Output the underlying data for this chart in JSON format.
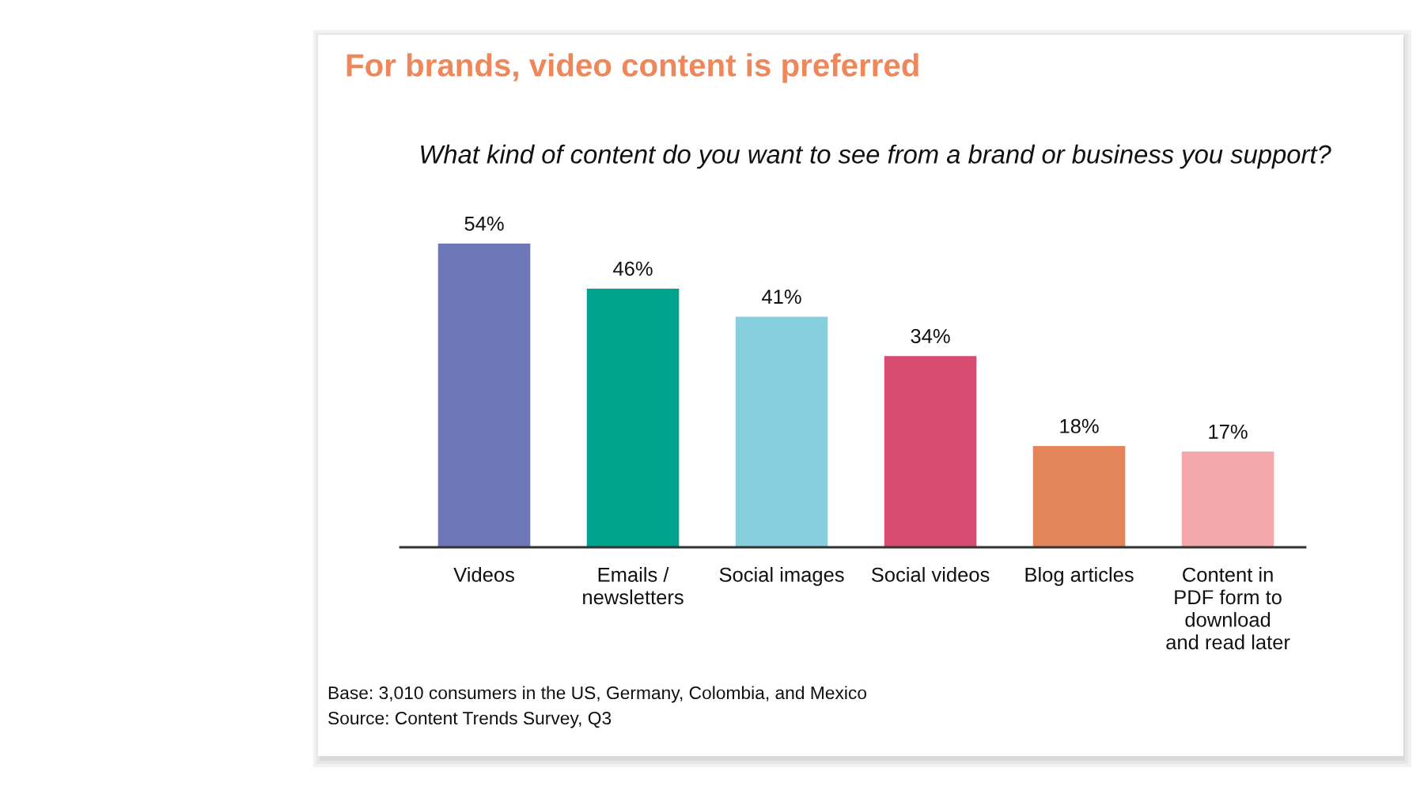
{
  "chart_data": {
    "type": "bar",
    "title": "For brands, video content is preferred",
    "subtitle": "What kind of content do you want to see from a brand or business you support?",
    "categories": [
      "Videos",
      "Emails /\nnewsletters",
      "Social images",
      "Social videos",
      "Blog articles",
      "Content in\nPDF form to\ndownload\nand read later"
    ],
    "values": [
      54,
      46,
      41,
      34,
      18,
      17
    ],
    "colors": [
      "#6e78b8",
      "#00a38e",
      "#85d0dc",
      "#d94c72",
      "#e3845a",
      "#f5a8ab"
    ],
    "value_labels": [
      "54%",
      "46%",
      "41%",
      "34%",
      "18%",
      "17%"
    ],
    "tick_labels": "x",
    "annotations": [
      "Base: 3,010 consumers in the US, Germany, Colombia, and Mexico",
      "Source: Content Trends Survey, Q3"
    ]
  }
}
